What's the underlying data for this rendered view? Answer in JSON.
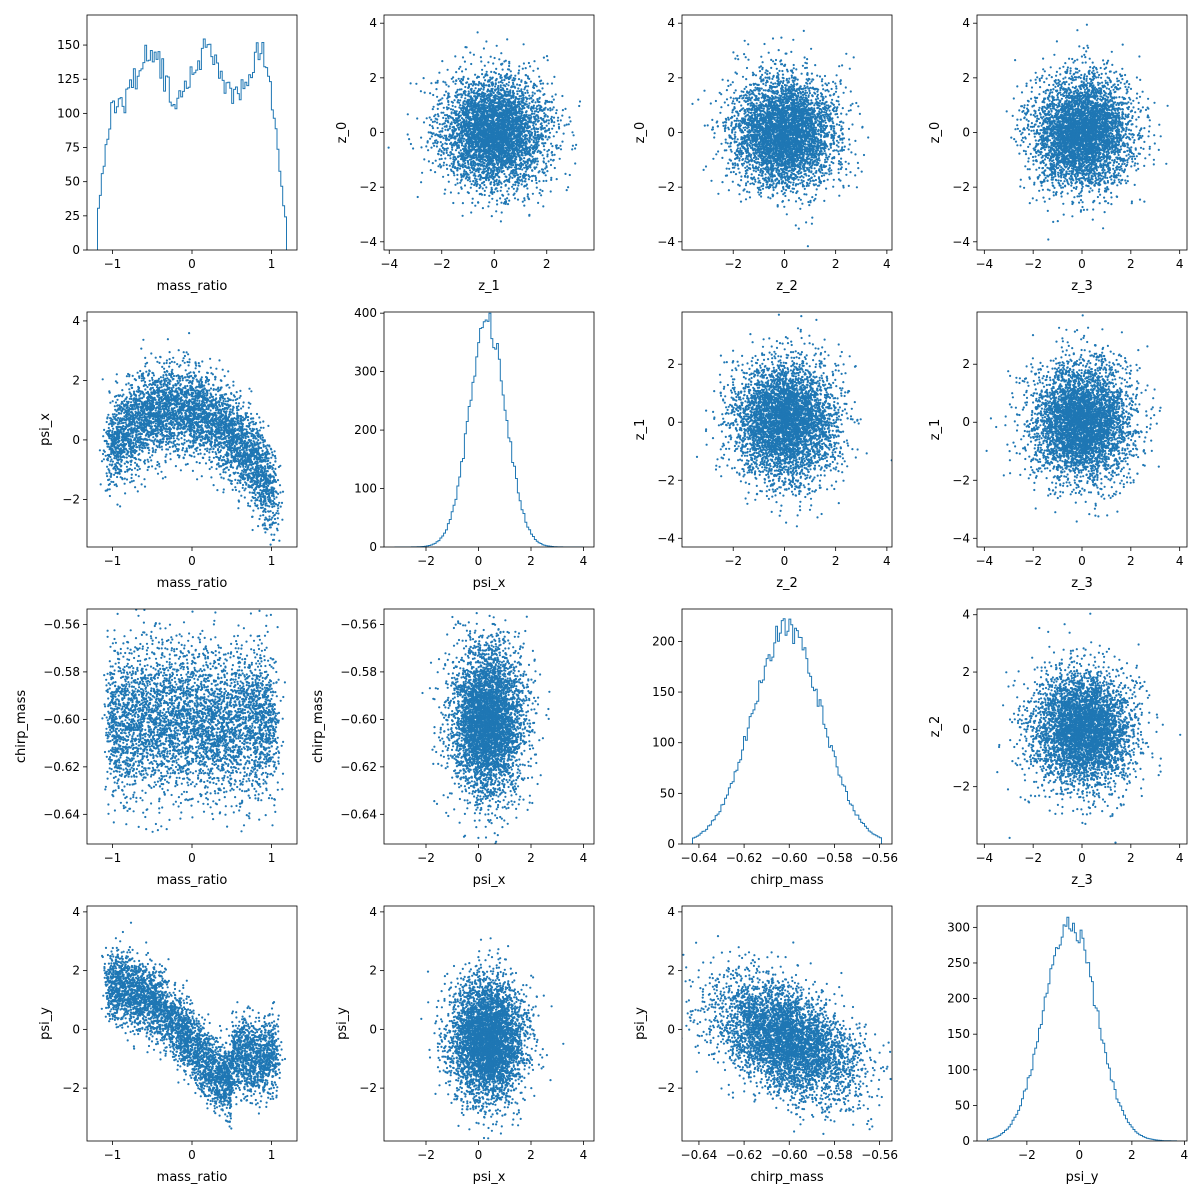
{
  "figure": {
    "background": "#ffffff",
    "series_color": "#1f77b4",
    "layout": "4x4 pair plot (lower triangle + diagonal + upper triangle)"
  },
  "chart_data": [
    {
      "id": "hist-mass_ratio",
      "type": "histogram",
      "xlabel": "mass_ratio",
      "ylabel": "",
      "xlim": [
        -1.32,
        1.32
      ],
      "ylim": [
        0,
        172
      ],
      "xticks": [
        -1,
        0,
        1
      ],
      "yticks": [
        0,
        25,
        50,
        75,
        100,
        125,
        150
      ],
      "xtick_labels": [
        "−1",
        "0",
        "1"
      ],
      "ytick_labels": [
        "0",
        "25",
        "50",
        "75",
        "100",
        "125",
        "150"
      ],
      "grid": false,
      "series": [
        {
          "shape": "uniform",
          "mean": 0,
          "std": 0.62,
          "lo": -1.1,
          "hi": 1.1,
          "seed": 1
        }
      ]
    },
    {
      "id": "scatter-z1-z0",
      "type": "scatter",
      "xlabel": "z_1",
      "ylabel": "z_0",
      "xlim": [
        -4.2,
        3.8
      ],
      "ylim": [
        -4.3,
        4.3
      ],
      "xticks": [
        -4,
        -2,
        0,
        2
      ],
      "yticks": [
        -4,
        -2,
        0,
        2,
        4
      ],
      "xtick_labels": [
        "−4",
        "−2",
        "0",
        "2"
      ],
      "ytick_labels": [
        "−4",
        "−2",
        "0",
        "2",
        "4"
      ],
      "grid": false,
      "series": [
        {
          "shape": "gaussian",
          "n": 4500,
          "mx": 0,
          "sx": 1,
          "my": 0,
          "sy": 1,
          "seed": 2
        }
      ]
    },
    {
      "id": "scatter-z2-z0",
      "type": "scatter",
      "xlabel": "z_2",
      "ylabel": "z_0",
      "xlim": [
        -4,
        4.2
      ],
      "ylim": [
        -4.3,
        4.3
      ],
      "xticks": [
        -2,
        0,
        2,
        4
      ],
      "yticks": [
        -4,
        -2,
        0,
        2,
        4
      ],
      "xtick_labels": [
        "−2",
        "0",
        "2",
        "4"
      ],
      "ytick_labels": [
        "−4",
        "−2",
        "0",
        "2",
        "4"
      ],
      "grid": false,
      "series": [
        {
          "shape": "gaussian",
          "n": 4500,
          "mx": 0,
          "sx": 1,
          "my": 0,
          "sy": 1,
          "seed": 3
        }
      ]
    },
    {
      "id": "scatter-z3-z0",
      "type": "scatter",
      "xlabel": "z_3",
      "ylabel": "z_0",
      "xlim": [
        -4.3,
        4.3
      ],
      "ylim": [
        -4.3,
        4.3
      ],
      "xticks": [
        -4,
        -2,
        0,
        2,
        4
      ],
      "yticks": [
        -4,
        -2,
        0,
        2,
        4
      ],
      "xtick_labels": [
        "−4",
        "−2",
        "0",
        "2",
        "4"
      ],
      "ytick_labels": [
        "−4",
        "−2",
        "0",
        "2",
        "4"
      ],
      "grid": false,
      "series": [
        {
          "shape": "gaussian",
          "n": 4500,
          "mx": 0,
          "sx": 1,
          "my": 0,
          "sy": 1,
          "seed": 4
        }
      ]
    },
    {
      "id": "scatter-mass_ratio-psi_x",
      "type": "scatter",
      "xlabel": "mass_ratio",
      "ylabel": "psi_x",
      "xlim": [
        -1.32,
        1.32
      ],
      "ylim": [
        -3.6,
        4.3
      ],
      "xticks": [
        -1,
        0,
        1
      ],
      "yticks": [
        -2,
        0,
        2,
        4
      ],
      "xtick_labels": [
        "−1",
        "0",
        "1"
      ],
      "ytick_labels": [
        "−2",
        "0",
        "2",
        "4"
      ],
      "grid": false,
      "series": [
        {
          "shape": "arch",
          "n": 4500,
          "seed": 5
        }
      ]
    },
    {
      "id": "hist-psi_x",
      "type": "histogram",
      "xlabel": "psi_x",
      "ylabel": "",
      "xlim": [
        -3.6,
        4.4
      ],
      "ylim": [
        0,
        402
      ],
      "xticks": [
        -2,
        0,
        2,
        4
      ],
      "yticks": [
        0,
        100,
        200,
        300,
        400
      ],
      "xtick_labels": [
        "−2",
        "0",
        "2",
        "4"
      ],
      "ytick_labels": [
        "0",
        "100",
        "200",
        "300",
        "400"
      ],
      "grid": false,
      "series": [
        {
          "shape": "gaussian",
          "mean": 0.35,
          "std": 0.7,
          "peak": 383,
          "seed": 6
        }
      ]
    },
    {
      "id": "scatter-z2-z1",
      "type": "scatter",
      "xlabel": "z_2",
      "ylabel": "z_1",
      "xlim": [
        -4,
        4.2
      ],
      "ylim": [
        -4.3,
        3.8
      ],
      "xticks": [
        -2,
        0,
        2,
        4
      ],
      "yticks": [
        -4,
        -2,
        0,
        2
      ],
      "xtick_labels": [
        "−2",
        "0",
        "2",
        "4"
      ],
      "ytick_labels": [
        "−4",
        "−2",
        "0",
        "2"
      ],
      "grid": false,
      "series": [
        {
          "shape": "gaussian",
          "n": 4500,
          "mx": 0,
          "sx": 1,
          "my": 0,
          "sy": 1,
          "seed": 7
        }
      ]
    },
    {
      "id": "scatter-z3-z1",
      "type": "scatter",
      "xlabel": "z_3",
      "ylabel": "z_1",
      "xlim": [
        -4.3,
        4.3
      ],
      "ylim": [
        -4.3,
        3.8
      ],
      "xticks": [
        -4,
        -2,
        0,
        2,
        4
      ],
      "yticks": [
        -4,
        -2,
        0,
        2
      ],
      "xtick_labels": [
        "−4",
        "−2",
        "0",
        "2",
        "4"
      ],
      "ytick_labels": [
        "−4",
        "−2",
        "0",
        "2"
      ],
      "grid": false,
      "series": [
        {
          "shape": "gaussian",
          "n": 4500,
          "mx": 0,
          "sx": 1,
          "my": 0,
          "sy": 1,
          "seed": 8
        }
      ]
    },
    {
      "id": "scatter-mass_ratio-chirp_mass",
      "type": "scatter",
      "xlabel": "mass_ratio",
      "ylabel": "chirp_mass",
      "xlim": [
        -1.32,
        1.32
      ],
      "ylim": [
        -0.6525,
        -0.5535
      ],
      "xticks": [
        -1,
        0,
        1
      ],
      "yticks": [
        -0.64,
        -0.62,
        -0.6,
        -0.58,
        -0.56
      ],
      "xtick_labels": [
        "−1",
        "0",
        "1"
      ],
      "ytick_labels": [
        "−0.64",
        "−0.62",
        "−0.60",
        "−0.58",
        "−0.56"
      ],
      "grid": false,
      "series": [
        {
          "shape": "band",
          "n": 4500,
          "seed": 9
        }
      ]
    },
    {
      "id": "scatter-psi_x-chirp_mass",
      "type": "scatter",
      "xlabel": "psi_x",
      "ylabel": "chirp_mass",
      "xlim": [
        -3.6,
        4.4
      ],
      "ylim": [
        -0.6525,
        -0.5535
      ],
      "xticks": [
        -2,
        0,
        2,
        4
      ],
      "yticks": [
        -0.64,
        -0.62,
        -0.6,
        -0.58,
        -0.56
      ],
      "xtick_labels": [
        "−2",
        "0",
        "2",
        "4"
      ],
      "ytick_labels": [
        "−0.64",
        "−0.62",
        "−0.60",
        "−0.58",
        "−0.56"
      ],
      "grid": false,
      "series": [
        {
          "shape": "gaussian",
          "n": 4500,
          "mx": 0.35,
          "sx": 0.7,
          "my": -0.601,
          "sy": 0.0155,
          "seed": 10
        }
      ]
    },
    {
      "id": "hist-chirp_mass",
      "type": "histogram",
      "xlabel": "chirp_mass",
      "ylabel": "",
      "xlim": [
        -0.6475,
        -0.5545
      ],
      "ylim": [
        0,
        232
      ],
      "xticks": [
        -0.64,
        -0.62,
        -0.6,
        -0.58,
        -0.56
      ],
      "yticks": [
        0,
        50,
        100,
        150,
        200
      ],
      "xtick_labels": [
        "−0.64",
        "−0.62",
        "−0.60",
        "−0.58",
        "−0.56"
      ],
      "ytick_labels": [
        "0",
        "50",
        "100",
        "150",
        "200"
      ],
      "grid": false,
      "series": [
        {
          "shape": "gaussian",
          "mean": -0.601,
          "std": 0.0155,
          "peak": 212,
          "seed": 11
        }
      ]
    },
    {
      "id": "scatter-z3-z2",
      "type": "scatter",
      "xlabel": "z_3",
      "ylabel": "z_2",
      "xlim": [
        -4.3,
        4.3
      ],
      "ylim": [
        -4,
        4.2
      ],
      "xticks": [
        -4,
        -2,
        0,
        2,
        4
      ],
      "yticks": [
        -2,
        0,
        2,
        4
      ],
      "xtick_labels": [
        "−4",
        "−2",
        "0",
        "2",
        "4"
      ],
      "ytick_labels": [
        "−2",
        "0",
        "2",
        "4"
      ],
      "grid": false,
      "series": [
        {
          "shape": "gaussian",
          "n": 4500,
          "mx": 0,
          "sx": 1,
          "my": 0,
          "sy": 1,
          "seed": 12
        }
      ]
    },
    {
      "id": "scatter-mass_ratio-psi_y",
      "type": "scatter",
      "xlabel": "mass_ratio",
      "ylabel": "psi_y",
      "xlim": [
        -1.32,
        1.32
      ],
      "ylim": [
        -3.8,
        4.2
      ],
      "xticks": [
        -1,
        0,
        1
      ],
      "yticks": [
        -2,
        0,
        2,
        4
      ],
      "xtick_labels": [
        "−1",
        "0",
        "1"
      ],
      "ytick_labels": [
        "−2",
        "0",
        "2",
        "4"
      ],
      "grid": false,
      "series": [
        {
          "shape": "sigmoid",
          "n": 4500,
          "seed": 13
        }
      ]
    },
    {
      "id": "scatter-psi_x-psi_y",
      "type": "scatter",
      "xlabel": "psi_x",
      "ylabel": "psi_y",
      "xlim": [
        -3.6,
        4.4
      ],
      "ylim": [
        -3.8,
        4.2
      ],
      "xticks": [
        -2,
        0,
        2,
        4
      ],
      "yticks": [
        -2,
        0,
        2,
        4
      ],
      "xtick_labels": [
        "−2",
        "0",
        "2",
        "4"
      ],
      "ytick_labels": [
        "−2",
        "0",
        "2",
        "4"
      ],
      "grid": false,
      "series": [
        {
          "shape": "gaussian",
          "n": 4500,
          "mx": 0.35,
          "sx": 0.7,
          "my": -0.35,
          "sy": 1.0,
          "seed": 14
        }
      ]
    },
    {
      "id": "scatter-chirp_mass-psi_y",
      "type": "scatter",
      "xlabel": "chirp_mass",
      "ylabel": "psi_y",
      "xlim": [
        -0.6475,
        -0.5545
      ],
      "ylim": [
        -3.8,
        4.2
      ],
      "xticks": [
        -0.64,
        -0.62,
        -0.6,
        -0.58,
        -0.56
      ],
      "yticks": [
        -2,
        0,
        2,
        4
      ],
      "xtick_labels": [
        "−0.64",
        "−0.62",
        "−0.60",
        "−0.58",
        "−0.56"
      ],
      "ytick_labels": [
        "−2",
        "0",
        "2",
        "4"
      ],
      "grid": false,
      "series": [
        {
          "shape": "neg-corr",
          "n": 4500,
          "mx": -0.601,
          "sx": 0.0155,
          "my": -0.35,
          "sy": 1.0,
          "rho": -0.45,
          "seed": 15
        }
      ]
    },
    {
      "id": "hist-psi_y",
      "type": "histogram",
      "xlabel": "psi_y",
      "ylabel": "",
      "xlim": [
        -3.9,
        4.1
      ],
      "ylim": [
        0,
        330
      ],
      "xticks": [
        -2,
        0,
        2,
        4
      ],
      "yticks": [
        0,
        50,
        100,
        150,
        200,
        250,
        300
      ],
      "xtick_labels": [
        "−2",
        "0",
        "2",
        "4"
      ],
      "ytick_labels": [
        "0",
        "50",
        "100",
        "150",
        "200",
        "250",
        "300"
      ],
      "grid": false,
      "series": [
        {
          "shape": "gaussian",
          "mean": -0.35,
          "std": 1.0,
          "peak": 305,
          "seed": 16
        }
      ]
    }
  ]
}
